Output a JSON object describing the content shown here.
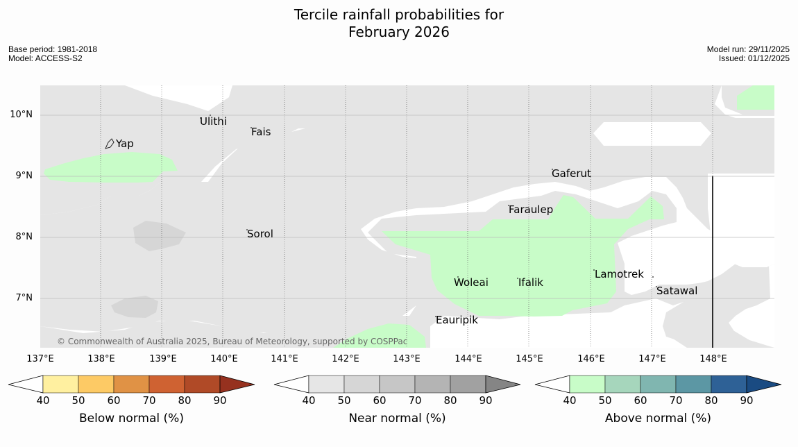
{
  "title_line1": "Tercile rainfall probabilities for",
  "title_line2": "February 2026",
  "meta_left": {
    "base_period": "Base period: 1981-2018",
    "model": "Model: ACCESS-S2"
  },
  "meta_right": {
    "model_run": "Model run: 29/11/2025",
    "issued": "Issued: 01/12/2025"
  },
  "map": {
    "lon_ticks": [
      "137°E",
      "138°E",
      "139°E",
      "140°E",
      "141°E",
      "142°E",
      "143°E",
      "144°E",
      "145°E",
      "146°E",
      "147°E",
      "148°E"
    ],
    "lat_ticks": [
      "10°N",
      "9°N",
      "8°N",
      "7°N"
    ],
    "places": [
      "Yap",
      "Ulithi",
      "Fais",
      "Gaferut",
      "Faraulep",
      "Sorol",
      "Lamotrek",
      "Woleai",
      "Ifalik",
      "Satawal",
      "Eauripik"
    ],
    "copyright": "© Commonwealth of Australia 2025, Bureau of Meteorology, supported by COSPPac"
  },
  "colorbars": {
    "below": {
      "label": "Below normal (%)",
      "ticks": [
        "40",
        "50",
        "60",
        "70",
        "80",
        "90"
      ],
      "colors": [
        "#fff0a0",
        "#fdca65",
        "#e09245",
        "#cf6232",
        "#b04a27",
        "#96311f"
      ]
    },
    "near": {
      "label": "Near normal (%)",
      "ticks": [
        "40",
        "50",
        "60",
        "70",
        "80",
        "90"
      ],
      "colors": [
        "#e6e6e6",
        "#d6d6d6",
        "#c6c6c6",
        "#b4b4b4",
        "#a1a1a1",
        "#858585"
      ]
    },
    "above": {
      "label": "Above normal (%)",
      "ticks": [
        "40",
        "50",
        "60",
        "70",
        "80",
        "90"
      ],
      "colors": [
        "#c8fcc8",
        "#a6d6bc",
        "#80b6b0",
        "#5c97a4",
        "#2e6196",
        "#1a4b82"
      ]
    }
  }
}
